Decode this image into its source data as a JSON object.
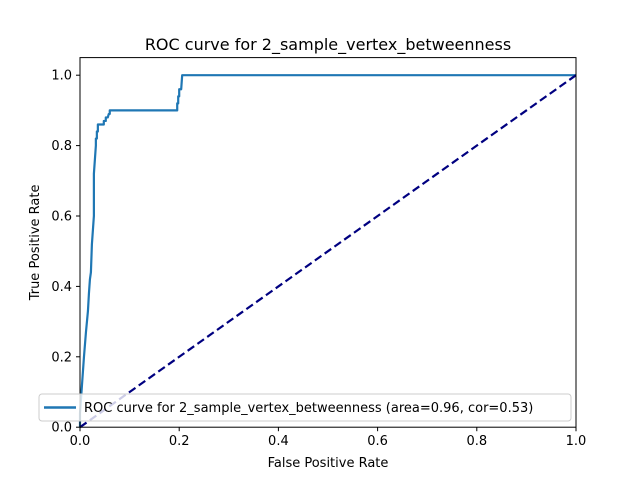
{
  "chart_data": {
    "type": "line",
    "title": "ROC curve for 2_sample_vertex_betweenness",
    "xlabel": "False Positive Rate",
    "ylabel": "True Positive Rate",
    "xlim": [
      0.0,
      1.0
    ],
    "ylim": [
      0.0,
      1.05
    ],
    "x_ticks": [
      "0.0",
      "0.2",
      "0.4",
      "0.6",
      "0.8",
      "1.0"
    ],
    "y_ticks": [
      "0.0",
      "0.2",
      "0.4",
      "0.6",
      "0.8",
      "1.0"
    ],
    "grid": false,
    "legend_position": "lower-right",
    "series": [
      {
        "name": "ROC curve for 2_sample_vertex_betweenness (area=0.96, cor=0.53)",
        "color": "#1f77b4",
        "style": "solid",
        "x": [
          0.0,
          0.0,
          0.004,
          0.008,
          0.012,
          0.016,
          0.018,
          0.02,
          0.022,
          0.024,
          0.026,
          0.028,
          0.028,
          0.03,
          0.032,
          0.032,
          0.034,
          0.034,
          0.036,
          0.036,
          0.04,
          0.048,
          0.048,
          0.052,
          0.052,
          0.056,
          0.058,
          0.06,
          0.06,
          0.194,
          0.196,
          0.196,
          0.198,
          0.198,
          0.2,
          0.2,
          0.204,
          0.206,
          1.0
        ],
        "y": [
          0.0,
          0.04,
          0.12,
          0.2,
          0.27,
          0.33,
          0.38,
          0.42,
          0.44,
          0.52,
          0.56,
          0.6,
          0.72,
          0.76,
          0.8,
          0.82,
          0.82,
          0.84,
          0.84,
          0.86,
          0.86,
          0.86,
          0.87,
          0.87,
          0.88,
          0.88,
          0.89,
          0.89,
          0.9,
          0.9,
          0.9,
          0.92,
          0.92,
          0.94,
          0.94,
          0.96,
          0.96,
          1.0,
          1.0
        ]
      },
      {
        "name": "",
        "color": "#000080",
        "style": "dashed",
        "x": [
          0.0,
          1.0
        ],
        "y": [
          0.0,
          1.0
        ]
      }
    ]
  }
}
